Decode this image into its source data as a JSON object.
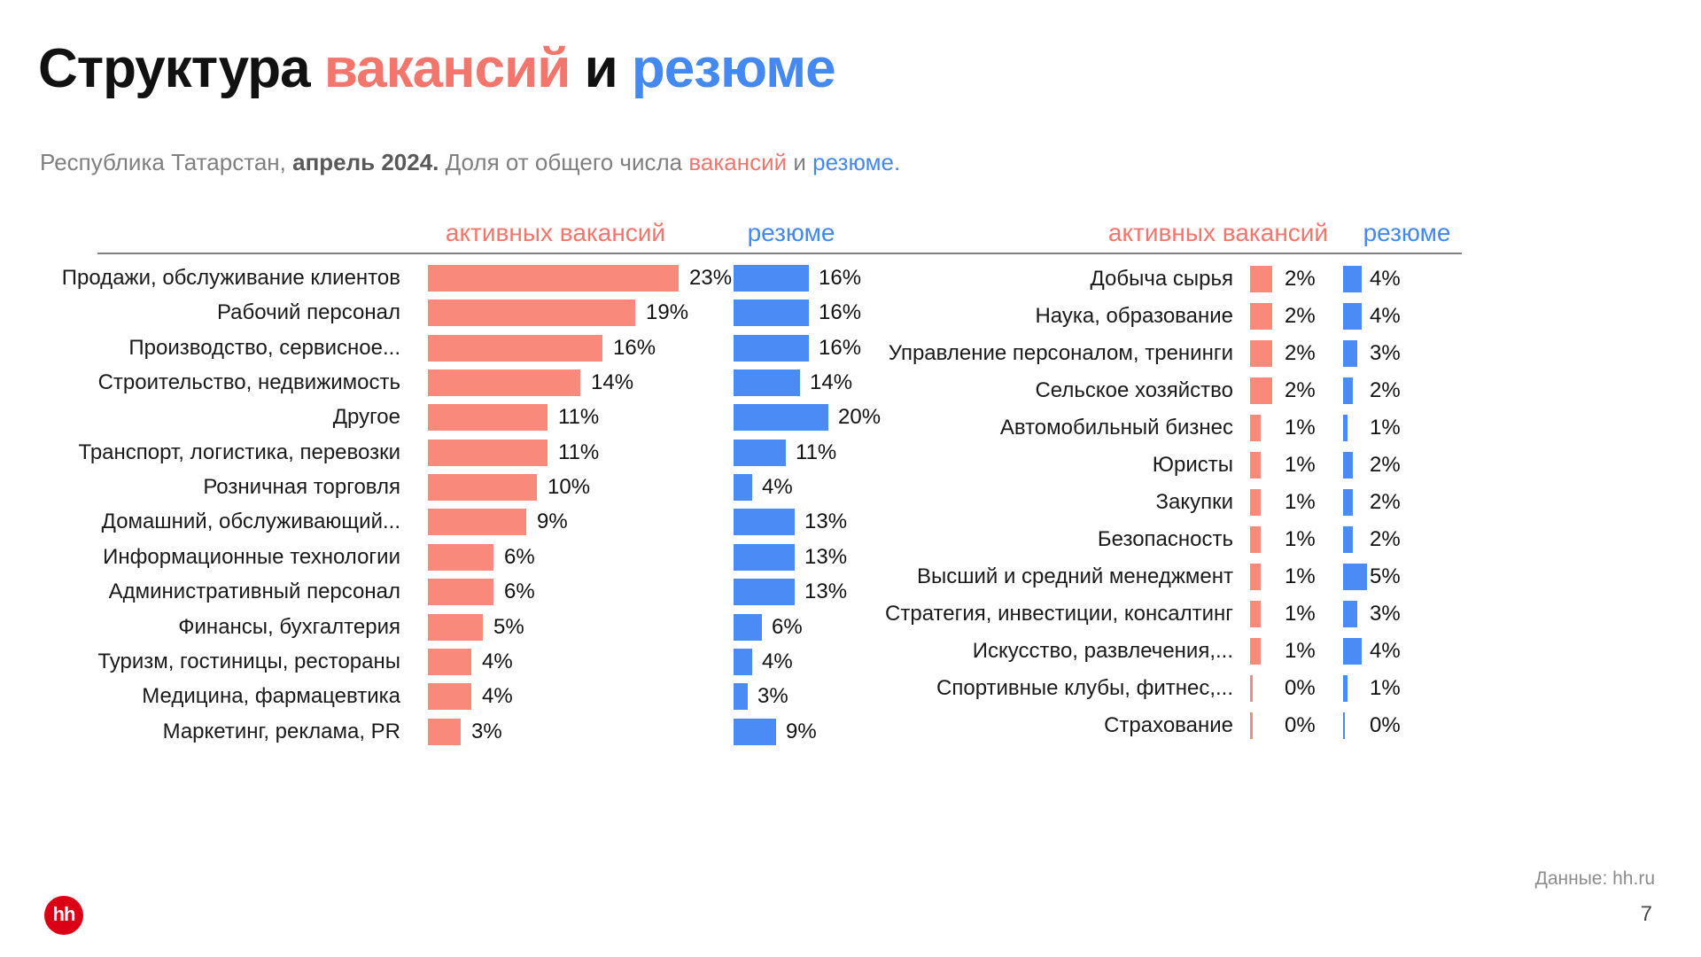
{
  "title": {
    "part_structure": "Структура",
    "accent_vacancies": "вакансий",
    "conjunction": "и",
    "accent_resumes": "резюме"
  },
  "subtitle": {
    "region": "Республика Татарстан,",
    "period": "апрель 2024.",
    "description": "Доля от общего числа",
    "accent_vacancies": "вакансий",
    "conjunction": "и",
    "accent_resumes": "резюме."
  },
  "column_headers": {
    "vacancies": "активных вакансий",
    "resumes": "резюме"
  },
  "footer": {
    "source": "Данные: hh.ru",
    "page": "7",
    "logo_text": "hh"
  },
  "colors": {
    "salmon_bar": "#F9897B",
    "blue_bar": "#4B8BF6",
    "title_salmon": "#F4756C",
    "title_blue": "#4488F2",
    "divider_gray": "#828282",
    "subtitle_gray": "#7F7F7F",
    "brand_red": "#DB0016"
  },
  "chart_data": [
    {
      "type": "bar",
      "group": "left",
      "title": "Структура вакансий и резюме — основные профобласти",
      "categories": [
        "Продажи, обслуживание клиентов",
        "Рабочий персонал",
        "Производство, сервисное...",
        "Строительство, недвижимость",
        "Другое",
        "Транспорт, логистика, перевозки",
        "Розничная торговля",
        "Домашний, обслуживающий...",
        "Информационные технологии",
        "Административный персонал",
        "Финансы, бухгалтерия",
        "Туризм, гостиницы, рестораны",
        "Медицина, фармацевтика",
        "Маркетинг, реклама, PR"
      ],
      "series": [
        {
          "name": "активных вакансий",
          "values": [
            23,
            19,
            16,
            14,
            11,
            11,
            10,
            9,
            6,
            6,
            5,
            4,
            4,
            3
          ]
        },
        {
          "name": "резюме",
          "values": [
            16,
            16,
            16,
            14,
            20,
            11,
            4,
            13,
            13,
            13,
            6,
            4,
            3,
            9
          ]
        }
      ],
      "value_suffix": "%",
      "xlim": [
        0,
        25
      ],
      "grid": false,
      "legend_position": "top"
    },
    {
      "type": "bar",
      "group": "right",
      "title": "Структура вакансий и резюме — остальные профобласти",
      "categories": [
        "Добыча сырья",
        "Наука, образование",
        "Управление персоналом, тренинги",
        "Сельское хозяйство",
        "Автомобильный бизнес",
        "Юристы",
        "Закупки",
        "Безопасность",
        "Высший и средний менеджмент",
        "Стратегия, инвестиции, консалтинг",
        "Искусство, развлечения,...",
        "Спортивные клубы, фитнес,...",
        "Страхование"
      ],
      "series": [
        {
          "name": "активных вакансий",
          "values": [
            2,
            2,
            2,
            2,
            1,
            1,
            1,
            1,
            1,
            1,
            1,
            0,
            0
          ]
        },
        {
          "name": "резюме",
          "values": [
            4,
            4,
            3,
            2,
            1,
            2,
            2,
            2,
            5,
            3,
            4,
            1,
            0
          ]
        }
      ],
      "value_suffix": "%",
      "xlim": [
        0,
        25
      ],
      "grid": false,
      "legend_position": "top"
    }
  ]
}
